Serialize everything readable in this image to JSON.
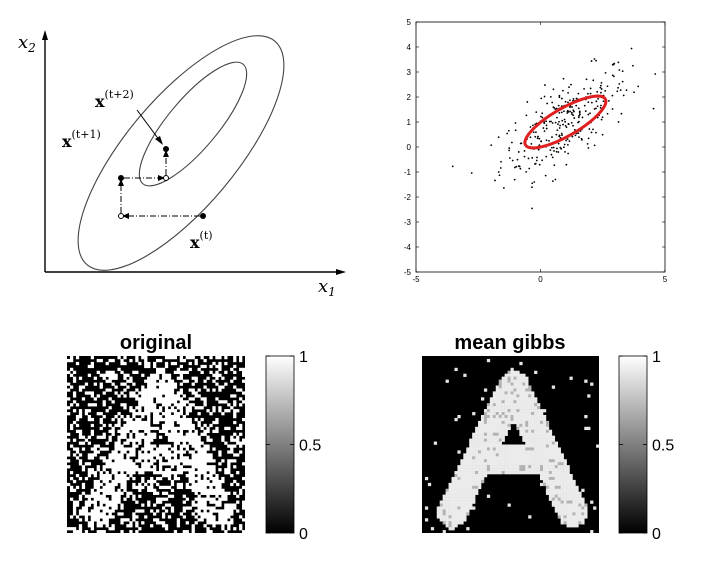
{
  "gibbs_diagram": {
    "x_axis_label": "x",
    "x_axis_sub": "1",
    "y_axis_label": "x",
    "y_axis_sub": "2",
    "labels": [
      {
        "id": "t",
        "base": "x",
        "sup": "(t)"
      },
      {
        "id": "t1",
        "base": "x",
        "sup": "(t+1)"
      },
      {
        "id": "t2",
        "base": "x",
        "sup": "(t+2)"
      }
    ]
  },
  "chart_data": [
    {
      "type": "scatter",
      "title": "",
      "xlabel": "",
      "ylabel": "",
      "xlim": [
        -5,
        5
      ],
      "ylim": [
        -5,
        5
      ],
      "xticks": [
        -5,
        0,
        5
      ],
      "yticks": [
        -5,
        -4,
        -3,
        -2,
        -1,
        0,
        1,
        2,
        3,
        4,
        5
      ],
      "grid": false,
      "points_description": "~300 samples from correlated 2D Gaussian",
      "mean": [
        1,
        1
      ],
      "std": [
        1.3,
        1.1
      ],
      "corr": 0.7,
      "ellipse": {
        "center": [
          1.0,
          1.0
        ],
        "semi_major": 1.85,
        "semi_minor": 0.55,
        "angle_deg": 30,
        "color": "#e02020"
      }
    },
    {
      "type": "heatmap",
      "title": "original",
      "colormap": "gray",
      "colorbar_ticks": [
        0,
        0.5,
        1
      ],
      "description": "binary noisy image of letter A"
    },
    {
      "type": "heatmap",
      "title": "mean gibbs",
      "colormap": "gray",
      "colorbar_ticks": [
        0,
        0.5,
        1
      ],
      "description": "denoised image of letter A"
    }
  ],
  "colors": {
    "ellipse": "#e02020",
    "ink": "#000000",
    "bg": "#ffffff"
  }
}
